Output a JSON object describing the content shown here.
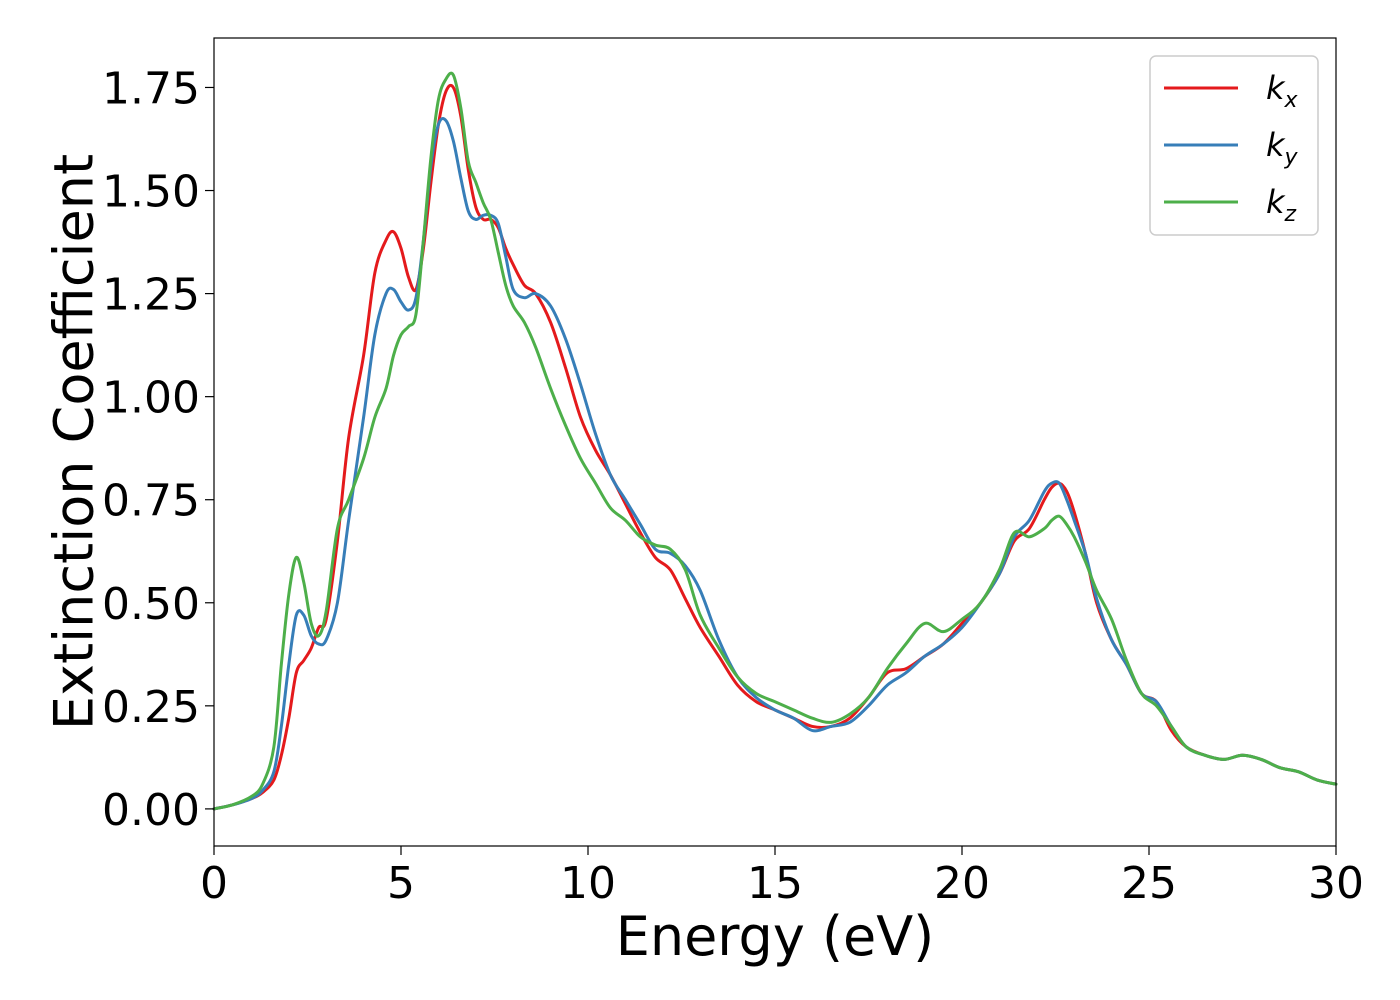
{
  "chart_data": {
    "type": "line",
    "title": "",
    "xlabel": "Energy (eV)",
    "ylabel": "Extinction Coefficient",
    "xlim": [
      0,
      30
    ],
    "ylim": [
      -0.09,
      1.87
    ],
    "xticks": [
      0,
      5,
      10,
      15,
      20,
      25,
      30
    ],
    "xtick_labels": [
      "0",
      "5",
      "10",
      "15",
      "20",
      "25",
      "30"
    ],
    "yticks": [
      0,
      0.25,
      0.5,
      0.75,
      1.0,
      1.25,
      1.5,
      1.75
    ],
    "ytick_labels": [
      "0.00",
      "0.25",
      "0.50",
      "0.75",
      "1.00",
      "1.25",
      "1.50",
      "1.75"
    ],
    "grid": false,
    "legend_position": "top-right",
    "series": [
      {
        "name": "k_x",
        "label_base": "k",
        "label_sub": "x",
        "color": "#e41a1c",
        "x": [
          0,
          0.5,
          1,
          1.3,
          1.6,
          1.8,
          2.0,
          2.2,
          2.4,
          2.6,
          2.8,
          3.0,
          3.3,
          3.6,
          4.0,
          4.3,
          4.6,
          4.8,
          5.0,
          5.2,
          5.4,
          5.6,
          5.8,
          6.0,
          6.2,
          6.4,
          6.6,
          6.8,
          7.0,
          7.2,
          7.4,
          7.6,
          7.8,
          8.0,
          8.3,
          8.6,
          9.0,
          9.4,
          9.8,
          10.2,
          10.6,
          11.0,
          11.4,
          11.8,
          12.2,
          12.6,
          13.0,
          13.5,
          14.0,
          14.5,
          15.0,
          15.5,
          16.0,
          16.5,
          17.0,
          17.5,
          18.0,
          18.5,
          19.0,
          19.5,
          20.0,
          20.5,
          21.0,
          21.4,
          21.8,
          22.2,
          22.4,
          22.6,
          22.8,
          23.0,
          23.3,
          23.6,
          24.0,
          24.4,
          24.8,
          25.2,
          25.6,
          26.0,
          26.5,
          27.0,
          27.5,
          28.0,
          28.5,
          29.0,
          29.5,
          30.0
        ],
        "y": [
          0,
          0.01,
          0.025,
          0.04,
          0.07,
          0.13,
          0.22,
          0.33,
          0.36,
          0.39,
          0.44,
          0.46,
          0.65,
          0.9,
          1.1,
          1.3,
          1.38,
          1.4,
          1.36,
          1.29,
          1.26,
          1.36,
          1.52,
          1.66,
          1.74,
          1.75,
          1.68,
          1.55,
          1.46,
          1.43,
          1.43,
          1.41,
          1.36,
          1.32,
          1.27,
          1.25,
          1.18,
          1.07,
          0.95,
          0.87,
          0.81,
          0.74,
          0.67,
          0.61,
          0.58,
          0.51,
          0.44,
          0.37,
          0.3,
          0.26,
          0.24,
          0.22,
          0.2,
          0.2,
          0.22,
          0.27,
          0.33,
          0.34,
          0.37,
          0.4,
          0.45,
          0.5,
          0.57,
          0.65,
          0.68,
          0.75,
          0.78,
          0.79,
          0.77,
          0.72,
          0.62,
          0.5,
          0.41,
          0.35,
          0.28,
          0.26,
          0.19,
          0.15,
          0.13,
          0.12,
          0.13,
          0.12,
          0.1,
          0.09,
          0.07,
          0.06
        ]
      },
      {
        "name": "k_y",
        "label_base": "k",
        "label_sub": "y",
        "color": "#377eb8",
        "x": [
          0,
          0.5,
          1,
          1.3,
          1.6,
          1.8,
          2.0,
          2.2,
          2.4,
          2.6,
          2.8,
          3.0,
          3.3,
          3.6,
          4.0,
          4.3,
          4.6,
          4.8,
          5.0,
          5.2,
          5.4,
          5.6,
          5.8,
          6.0,
          6.2,
          6.4,
          6.6,
          6.8,
          7.0,
          7.2,
          7.4,
          7.6,
          7.8,
          8.0,
          8.3,
          8.6,
          9.0,
          9.4,
          9.8,
          10.2,
          10.6,
          11.0,
          11.4,
          11.8,
          12.2,
          12.6,
          13.0,
          13.5,
          14.0,
          14.5,
          15.0,
          15.5,
          16.0,
          16.5,
          17.0,
          17.5,
          18.0,
          18.5,
          19.0,
          19.5,
          20.0,
          20.5,
          21.0,
          21.4,
          21.8,
          22.2,
          22.4,
          22.6,
          22.8,
          23.0,
          23.3,
          23.6,
          24.0,
          24.4,
          24.8,
          25.2,
          25.6,
          26.0,
          26.5,
          27.0,
          27.5,
          28.0,
          28.5,
          29.0,
          29.5,
          30.0
        ],
        "y": [
          0,
          0.01,
          0.025,
          0.045,
          0.09,
          0.2,
          0.35,
          0.47,
          0.47,
          0.42,
          0.4,
          0.41,
          0.5,
          0.7,
          0.95,
          1.15,
          1.25,
          1.26,
          1.23,
          1.21,
          1.24,
          1.38,
          1.56,
          1.66,
          1.67,
          1.62,
          1.53,
          1.45,
          1.43,
          1.44,
          1.44,
          1.42,
          1.34,
          1.26,
          1.24,
          1.25,
          1.22,
          1.14,
          1.03,
          0.91,
          0.81,
          0.75,
          0.69,
          0.63,
          0.62,
          0.59,
          0.53,
          0.41,
          0.32,
          0.27,
          0.24,
          0.22,
          0.19,
          0.2,
          0.21,
          0.25,
          0.3,
          0.33,
          0.37,
          0.4,
          0.44,
          0.5,
          0.57,
          0.66,
          0.7,
          0.77,
          0.79,
          0.79,
          0.75,
          0.7,
          0.62,
          0.51,
          0.41,
          0.35,
          0.28,
          0.26,
          0.2,
          0.15,
          0.13,
          0.12,
          0.13,
          0.12,
          0.1,
          0.09,
          0.07,
          0.06
        ]
      },
      {
        "name": "k_z",
        "label_base": "k",
        "label_sub": "z",
        "color": "#4daf4a",
        "x": [
          0,
          0.5,
          1,
          1.3,
          1.6,
          1.8,
          2.0,
          2.2,
          2.4,
          2.6,
          2.8,
          3.0,
          3.3,
          3.6,
          4.0,
          4.3,
          4.6,
          4.8,
          5.0,
          5.2,
          5.4,
          5.6,
          5.8,
          6.0,
          6.2,
          6.4,
          6.6,
          6.8,
          7.0,
          7.2,
          7.4,
          7.6,
          7.8,
          8.0,
          8.3,
          8.6,
          9.0,
          9.4,
          9.8,
          10.2,
          10.6,
          11.0,
          11.4,
          11.8,
          12.2,
          12.6,
          13.0,
          13.5,
          14.0,
          14.5,
          15.0,
          15.5,
          16.0,
          16.5,
          17.0,
          17.5,
          18.0,
          18.5,
          19.0,
          19.5,
          20.0,
          20.5,
          21.0,
          21.4,
          21.8,
          22.2,
          22.4,
          22.6,
          22.8,
          23.0,
          23.3,
          23.6,
          24.0,
          24.4,
          24.8,
          25.2,
          25.6,
          26.0,
          26.5,
          27.0,
          27.5,
          28.0,
          28.5,
          29.0,
          29.5,
          30.0
        ],
        "y": [
          0,
          0.01,
          0.03,
          0.06,
          0.15,
          0.35,
          0.52,
          0.61,
          0.55,
          0.45,
          0.42,
          0.48,
          0.68,
          0.75,
          0.85,
          0.95,
          1.02,
          1.1,
          1.15,
          1.17,
          1.2,
          1.38,
          1.58,
          1.72,
          1.77,
          1.78,
          1.7,
          1.57,
          1.52,
          1.47,
          1.43,
          1.35,
          1.27,
          1.22,
          1.18,
          1.12,
          1.02,
          0.93,
          0.85,
          0.79,
          0.73,
          0.7,
          0.66,
          0.64,
          0.63,
          0.58,
          0.47,
          0.39,
          0.32,
          0.28,
          0.26,
          0.24,
          0.22,
          0.21,
          0.23,
          0.27,
          0.34,
          0.4,
          0.45,
          0.43,
          0.46,
          0.5,
          0.58,
          0.67,
          0.66,
          0.68,
          0.7,
          0.71,
          0.69,
          0.66,
          0.6,
          0.53,
          0.46,
          0.36,
          0.28,
          0.25,
          0.2,
          0.15,
          0.13,
          0.12,
          0.13,
          0.12,
          0.1,
          0.09,
          0.07,
          0.06
        ]
      }
    ]
  }
}
